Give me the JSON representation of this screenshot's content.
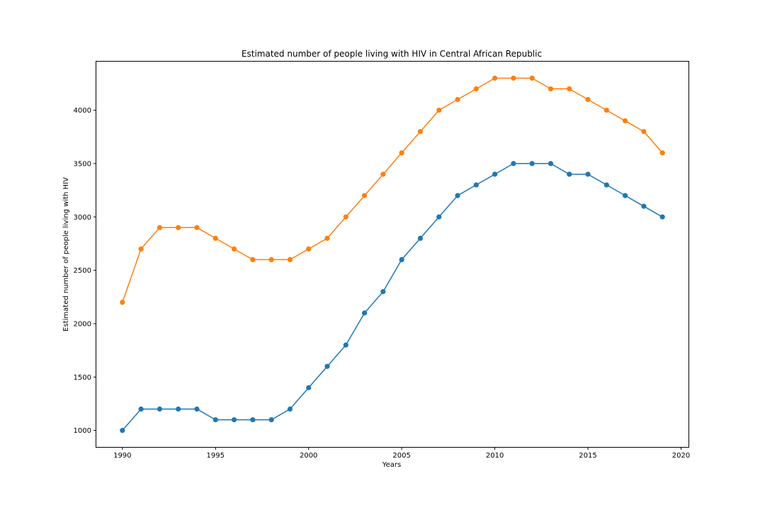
{
  "chart_data": {
    "type": "line",
    "title": "Estimated number of people living with HIV in Central African Republic",
    "xlabel": "Years",
    "ylabel": "Estimated number of people living with HIV",
    "xlim": [
      1988.6,
      2020.4
    ],
    "ylim": [
      845,
      4455
    ],
    "x_ticks": [
      1990,
      1995,
      2000,
      2005,
      2010,
      2015,
      2020
    ],
    "y_ticks": [
      1000,
      1500,
      2000,
      2500,
      3000,
      3500,
      4000
    ],
    "grid": false,
    "legend": "none",
    "x": [
      1990,
      1991,
      1992,
      1993,
      1994,
      1995,
      1996,
      1997,
      1998,
      1999,
      2000,
      2001,
      2002,
      2003,
      2004,
      2005,
      2006,
      2007,
      2008,
      2009,
      2010,
      2011,
      2012,
      2013,
      2014,
      2015,
      2016,
      2017,
      2018,
      2019
    ],
    "series": [
      {
        "color": "#1f77b4",
        "values": [
          1000,
          1200,
          1200,
          1200,
          1200,
          1100,
          1100,
          1100,
          1100,
          1200,
          1400,
          1600,
          1800,
          2100,
          2300,
          2600,
          2800,
          3000,
          3200,
          3300,
          3400,
          3500,
          3500,
          3500,
          3400,
          3400,
          3300,
          3200,
          3100,
          3000
        ]
      },
      {
        "color": "#ff7f0e",
        "values": [
          2200,
          2700,
          2900,
          2900,
          2900,
          2800,
          2700,
          2600,
          2600,
          2600,
          2700,
          2800,
          3000,
          3200,
          3400,
          3600,
          3800,
          4000,
          4100,
          4200,
          4300,
          4300,
          4300,
          4200,
          4200,
          4100,
          4000,
          3900,
          3800,
          3600
        ]
      }
    ]
  }
}
